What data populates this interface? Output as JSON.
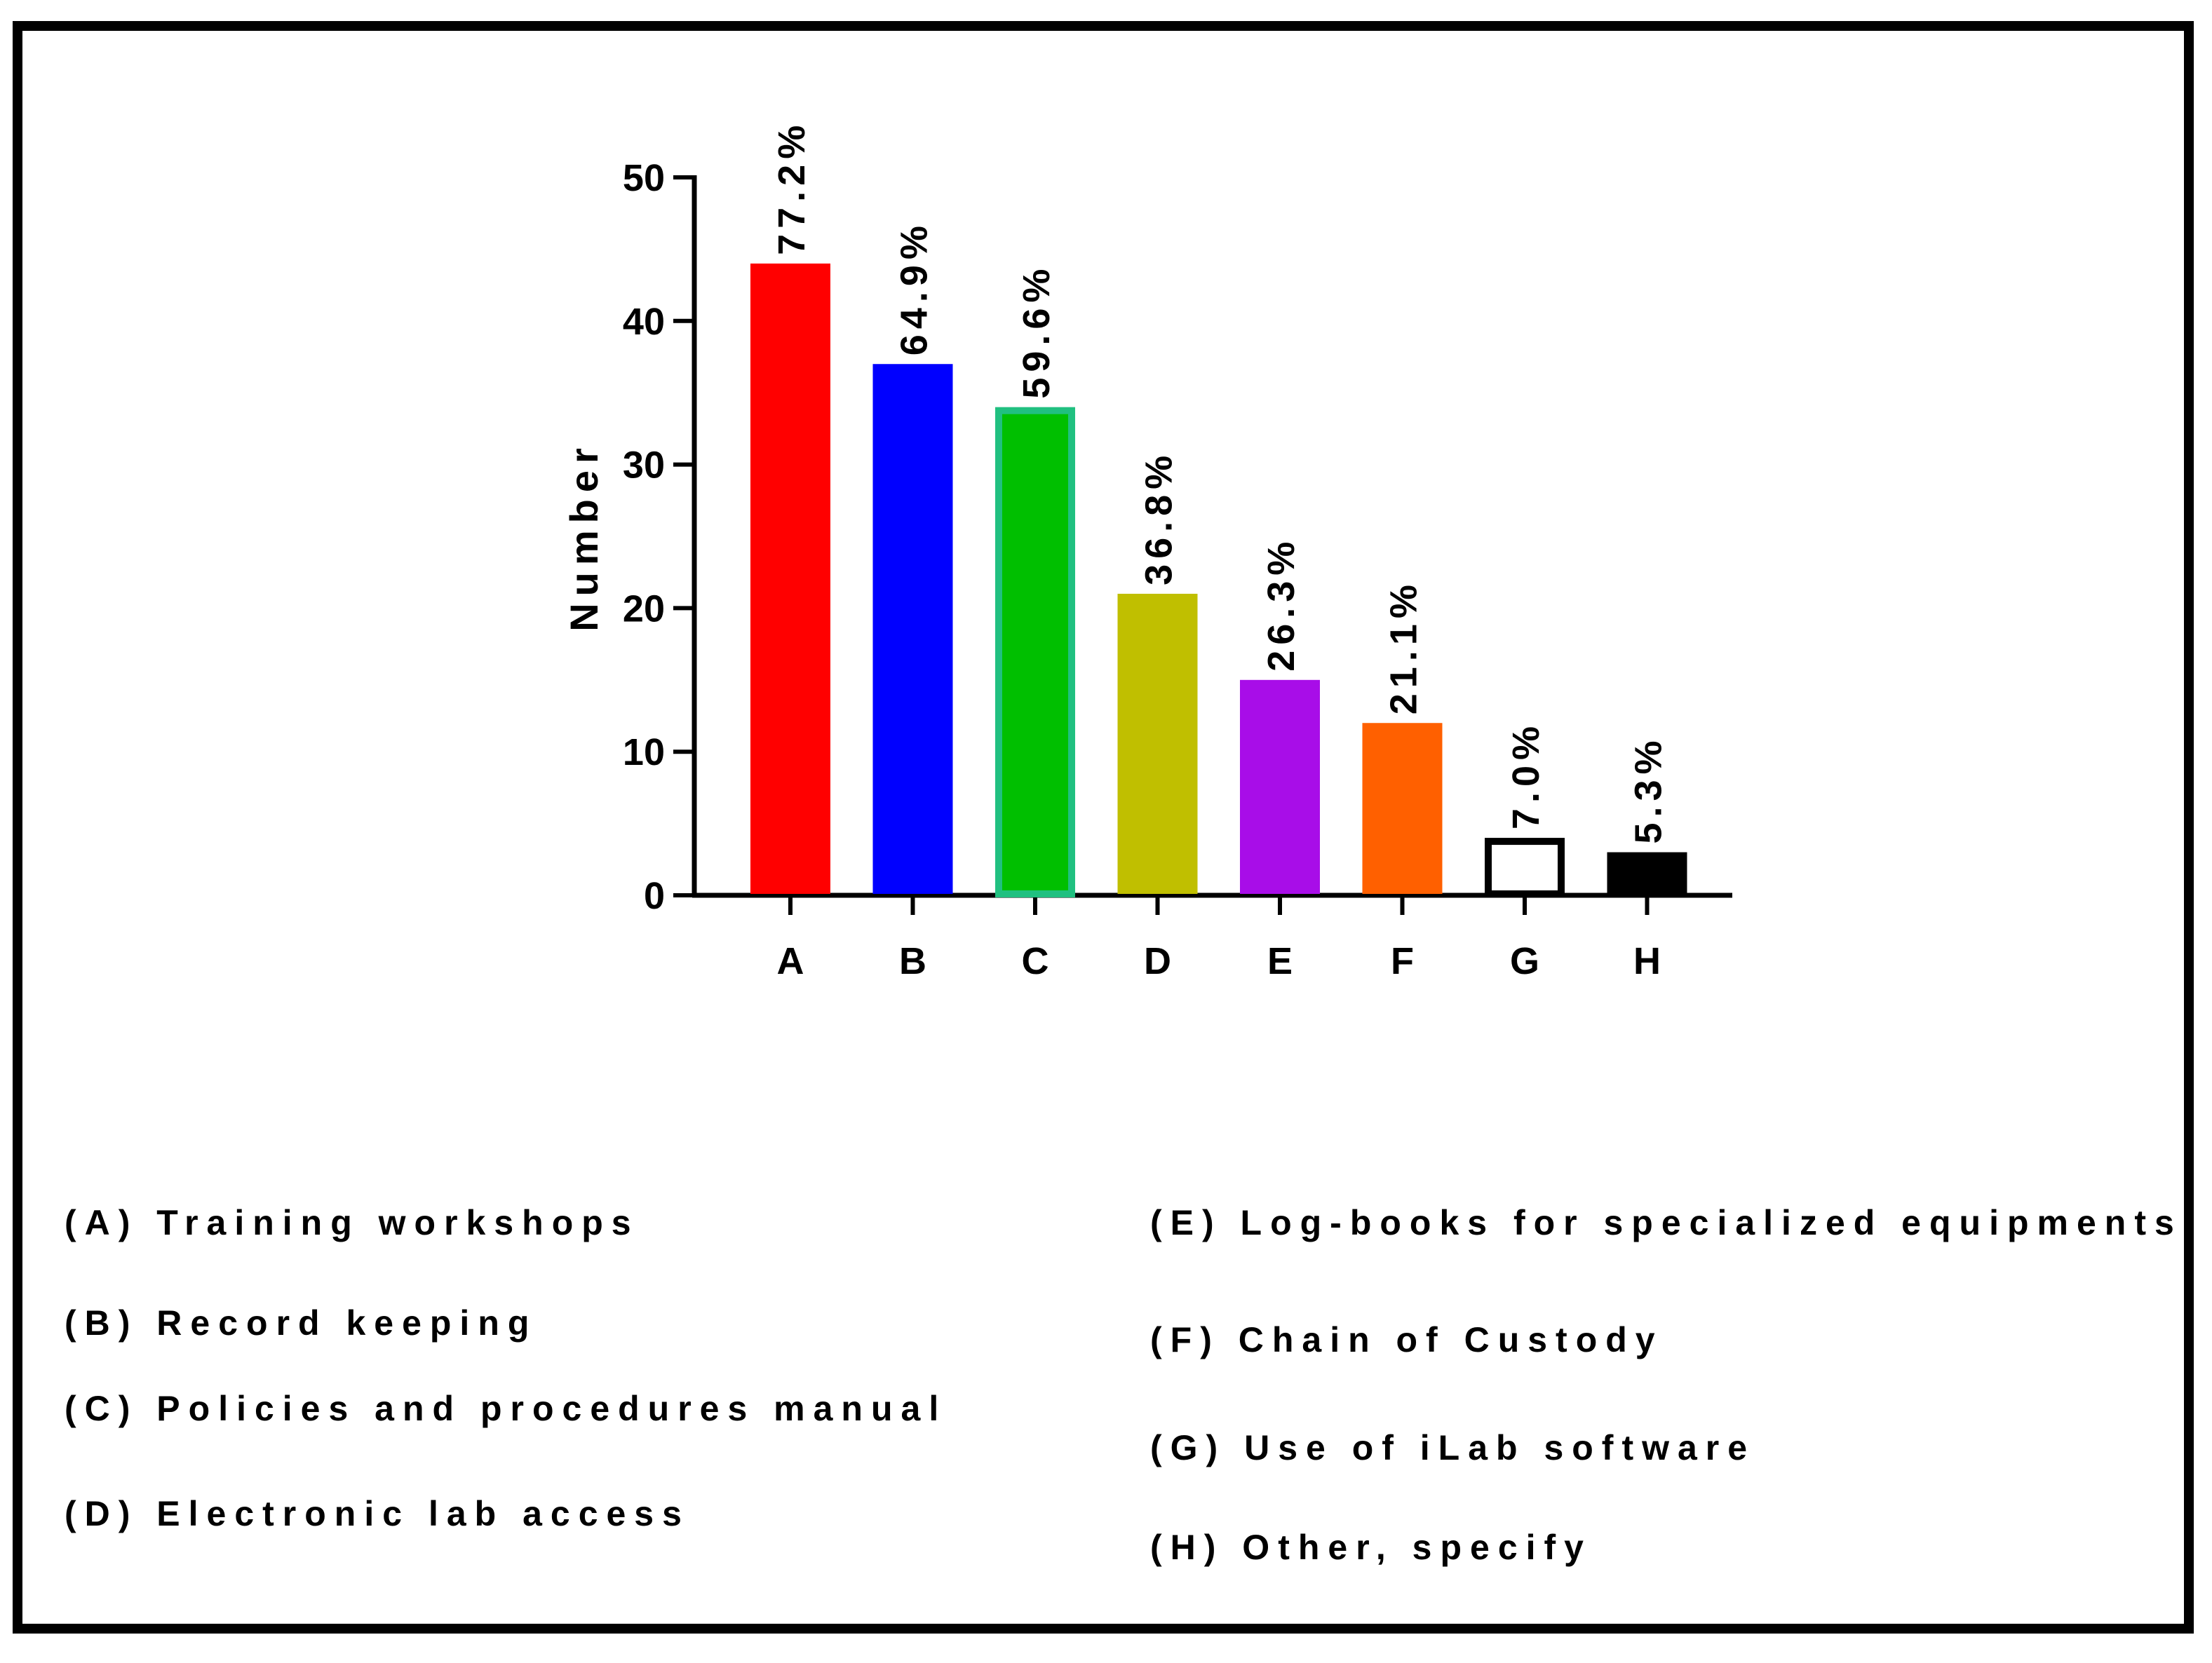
{
  "chart_data": {
    "type": "bar",
    "categories": [
      "A",
      "B",
      "C",
      "D",
      "E",
      "F",
      "G",
      "H"
    ],
    "values": [
      44,
      37,
      34,
      21,
      15,
      12,
      4,
      3
    ],
    "data_labels": [
      "77.2%",
      "64.9%",
      "59.6%",
      "36.8%",
      "26.3%",
      "21.1%",
      "7.0%",
      "5.3%"
    ],
    "colors": [
      "#ff0000",
      "#0000ff",
      "#00bf00",
      "#c0bf00",
      "#a80de8",
      "#ff6000",
      "#ffffff",
      "#000000"
    ],
    "stroke_colors": [
      "#ff0000",
      "#0000ff",
      "#20c080",
      "#c0bf00",
      "#a80de8",
      "#ff6000",
      "#000000",
      "#000000"
    ],
    "ylabel": "Number",
    "xlabel": "",
    "ylim": [
      0,
      50
    ],
    "yticks": [
      0,
      10,
      20,
      30,
      40,
      50
    ],
    "grid": false
  },
  "legend": {
    "left": [
      "(A) Training workshops",
      "(B) Record keeping",
      "(C) Policies and procedures manual",
      "(D) Electronic lab access"
    ],
    "right": [
      "(E) Log-books for specialized equipments",
      "(F) Chain of Custody",
      "(G) Use of iLab software",
      "(H) Other, specify"
    ]
  }
}
